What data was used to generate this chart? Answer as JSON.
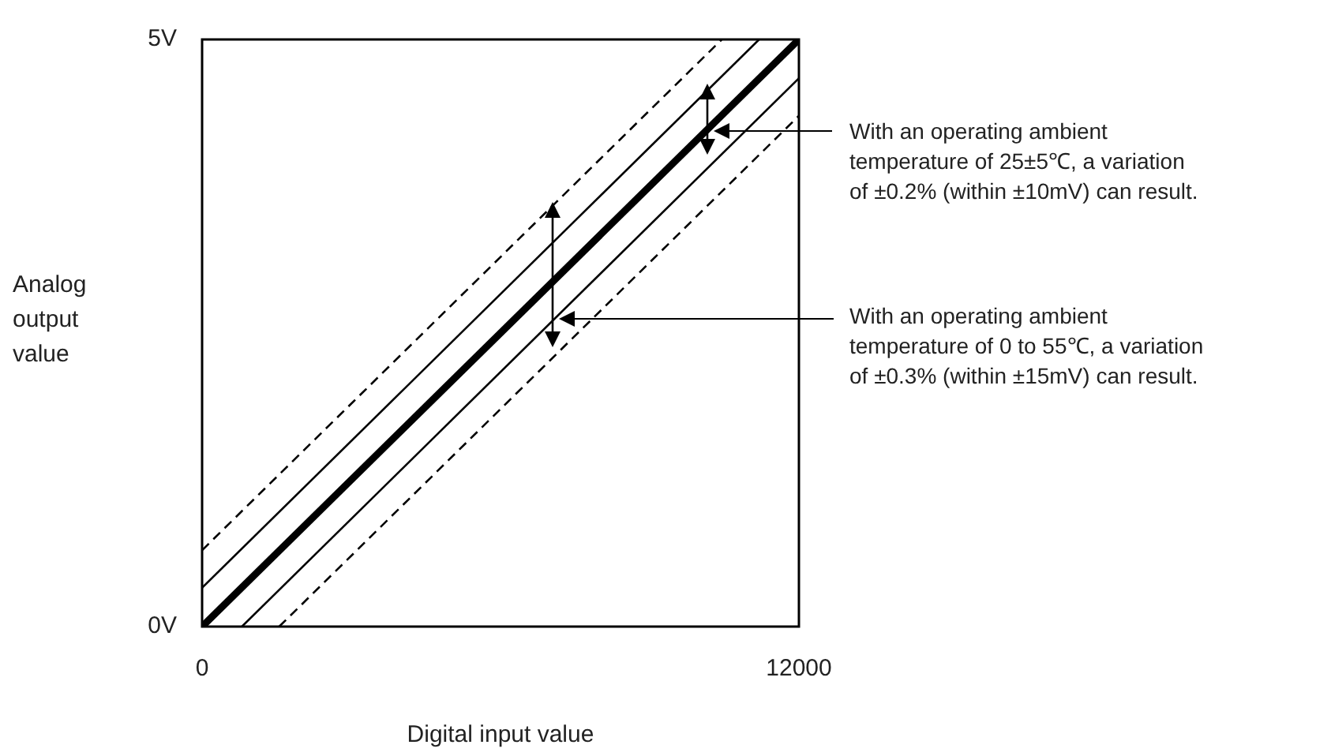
{
  "chart_data": {
    "type": "line",
    "xlabel": "Digital input value",
    "ylabel": "Analog output value",
    "xlim": [
      0,
      12000
    ],
    "xticks": [
      0,
      12000
    ],
    "ylim": [
      0,
      5
    ],
    "yticks": [
      {
        "value": 0,
        "label": "0V"
      },
      {
        "value": 5,
        "label": "5V"
      }
    ],
    "marker": "none",
    "series": [
      {
        "color": "#000000",
        "line_style": "solid",
        "x": [
          0,
          12000
        ],
        "values": [
          0,
          5
        ]
      },
      {
        "color": "#000000",
        "line_style": "solid",
        "x": [
          0,
          11200
        ],
        "values": [
          0.33,
          5
        ]
      },
      {
        "color": "#000000",
        "line_style": "solid",
        "x": [
          800,
          12000
        ],
        "values": [
          0,
          4.67
        ]
      },
      {
        "color": "#000000",
        "line_style": "dashed",
        "x": [
          0,
          10450
        ],
        "values": [
          0.65,
          5
        ]
      },
      {
        "color": "#000000",
        "line_style": "dashed",
        "x": [
          1550,
          12000
        ],
        "values": [
          0,
          4.35
        ]
      }
    ],
    "annotations": [
      "With an operating ambient\ntemperature of 25±5℃, a variation\nof ±0.2% (within ±10mV) can result.",
      "With an operating ambient\ntemperature of 0 to 55℃, a variation\nof ±0.3% (within ±15mV) can result."
    ]
  }
}
